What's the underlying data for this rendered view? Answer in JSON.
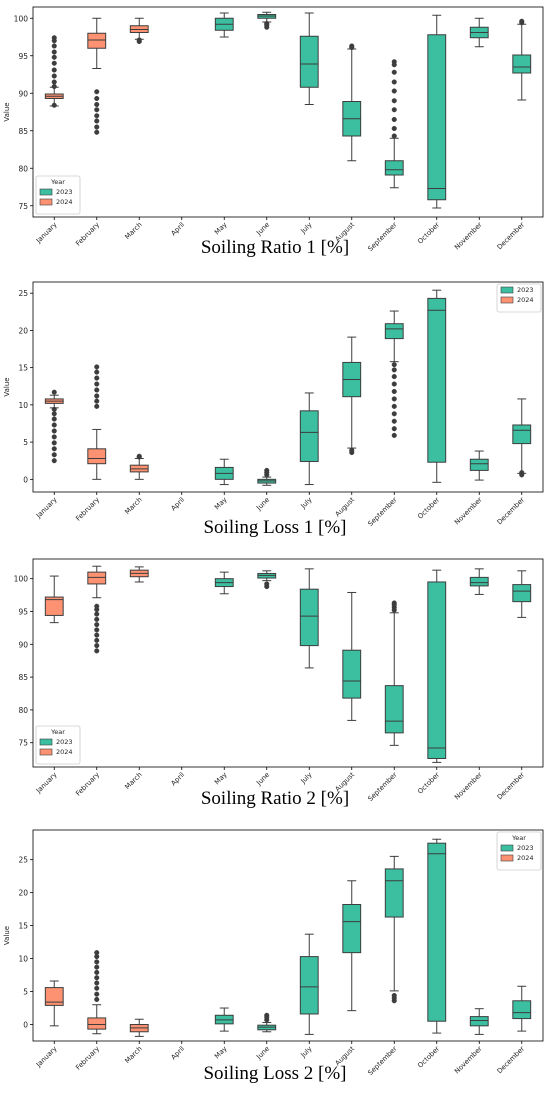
{
  "colors": {
    "y2023": "#3bbfa0",
    "y2024": "#fc9272",
    "stroke": "#3d3d3d",
    "axis": "#000000"
  },
  "legend_title": "Year",
  "chart_data": [
    {
      "type": "box",
      "title": "Soiling Ratio 1 [%]",
      "ylabel": "Value",
      "legend": {
        "title": "Year",
        "entries": [
          "2023",
          "2024"
        ],
        "placement": "bottom-left"
      },
      "categories": [
        "January",
        "February",
        "March",
        "April",
        "May",
        "June",
        "July",
        "August",
        "September",
        "October",
        "November",
        "December"
      ],
      "ylim": [
        73.5,
        101.5
      ],
      "yticks": [
        75,
        80,
        85,
        90,
        95,
        100
      ],
      "boxes": [
        {
          "cat": "January",
          "series": "2024",
          "min": 88.3,
          "q1": 89.3,
          "median": 89.6,
          "q3": 89.9,
          "max": 90.8,
          "outliers": [
            88.4,
            90.9,
            91.5,
            92.3,
            93.1,
            94.0,
            94.8,
            95.5,
            96.3,
            97.0,
            97.4
          ]
        },
        {
          "cat": "February",
          "series": "2024",
          "min": 93.3,
          "q1": 96.0,
          "median": 97.1,
          "q3": 98.0,
          "max": 100.0,
          "outliers": [
            84.8,
            85.5,
            86.3,
            87.0,
            87.8,
            88.5,
            89.3,
            90.2
          ]
        },
        {
          "cat": "March",
          "series": "2024",
          "min": 97.2,
          "q1": 98.1,
          "median": 98.5,
          "q3": 99.0,
          "max": 100.0,
          "outliers": [
            96.9,
            97.1
          ]
        },
        {
          "cat": "May",
          "series": "2023",
          "min": 97.5,
          "q1": 98.4,
          "median": 99.2,
          "q3": 100.0,
          "max": 100.7,
          "outliers": []
        },
        {
          "cat": "June",
          "series": "2023",
          "min": 99.5,
          "q1": 100.0,
          "median": 100.3,
          "q3": 100.5,
          "max": 100.8,
          "outliers": [
            98.8,
            99.1,
            99.3
          ]
        },
        {
          "cat": "July",
          "series": "2023",
          "min": 88.5,
          "q1": 90.8,
          "median": 93.9,
          "q3": 97.6,
          "max": 100.7,
          "outliers": []
        },
        {
          "cat": "August",
          "series": "2023",
          "min": 81.0,
          "q1": 84.3,
          "median": 86.6,
          "q3": 88.9,
          "max": 95.9,
          "outliers": [
            96.1,
            96.3
          ]
        },
        {
          "cat": "September",
          "series": "2023",
          "min": 77.4,
          "q1": 79.1,
          "median": 79.8,
          "q3": 81.0,
          "max": 84.0,
          "outliers": [
            84.3,
            85.3,
            86.5,
            87.8,
            89.0,
            90.3,
            91.5,
            92.8,
            93.8,
            94.2
          ]
        },
        {
          "cat": "October",
          "series": "2023",
          "min": 74.7,
          "q1": 75.8,
          "median": 77.3,
          "q3": 97.8,
          "max": 100.4,
          "outliers": []
        },
        {
          "cat": "November",
          "series": "2023",
          "min": 96.2,
          "q1": 97.4,
          "median": 98.1,
          "q3": 98.8,
          "max": 100.0,
          "outliers": []
        },
        {
          "cat": "December",
          "series": "2023",
          "min": 89.1,
          "q1": 92.7,
          "median": 93.5,
          "q3": 95.1,
          "max": 99.2,
          "outliers": [
            99.4,
            99.6
          ]
        }
      ]
    },
    {
      "type": "box",
      "title": "Soiling Loss 1 [%]",
      "ylabel": "Value",
      "legend": {
        "title": "",
        "entries": [
          "2023",
          "2024"
        ],
        "placement": "top-right"
      },
      "categories": [
        "January",
        "February",
        "March",
        "April",
        "May",
        "June",
        "July",
        "August",
        "September",
        "October",
        "November",
        "December"
      ],
      "ylim": [
        -1.7,
        26.5
      ],
      "yticks": [
        0,
        5,
        10,
        15,
        20,
        25
      ],
      "boxes": [
        {
          "cat": "January",
          "series": "2024",
          "min": 9.6,
          "q1": 10.2,
          "median": 10.5,
          "q3": 10.8,
          "max": 11.3,
          "outliers": [
            2.5,
            3.3,
            4.1,
            4.9,
            5.7,
            6.5,
            7.3,
            8.1,
            8.8,
            9.4,
            11.7
          ]
        },
        {
          "cat": "February",
          "series": "2024",
          "min": 0.0,
          "q1": 2.1,
          "median": 2.8,
          "q3": 4.1,
          "max": 6.7,
          "outliers": [
            9.8,
            10.5,
            11.2,
            12.0,
            12.8,
            13.6,
            14.4,
            15.1
          ]
        },
        {
          "cat": "March",
          "series": "2024",
          "min": 0.0,
          "q1": 1.0,
          "median": 1.4,
          "q3": 1.9,
          "max": 2.8,
          "outliers": [
            3.0,
            3.1
          ]
        },
        {
          "cat": "May",
          "series": "2023",
          "min": -0.7,
          "q1": 0.0,
          "median": 0.8,
          "q3": 1.6,
          "max": 2.7,
          "outliers": []
        },
        {
          "cat": "June",
          "series": "2023",
          "min": -0.8,
          "q1": -0.5,
          "median": -0.2,
          "q3": 0.0,
          "max": 0.3,
          "outliers": [
            0.6,
            0.9,
            1.2
          ]
        },
        {
          "cat": "July",
          "series": "2023",
          "min": -0.7,
          "q1": 2.4,
          "median": 6.3,
          "q3": 9.2,
          "max": 11.6,
          "outliers": []
        },
        {
          "cat": "August",
          "series": "2023",
          "min": 4.2,
          "q1": 11.1,
          "median": 13.4,
          "q3": 15.7,
          "max": 19.1,
          "outliers": [
            3.6,
            3.9
          ]
        },
        {
          "cat": "September",
          "series": "2023",
          "min": 15.8,
          "q1": 18.9,
          "median": 20.2,
          "q3": 20.9,
          "max": 22.6,
          "outliers": [
            5.9,
            6.8,
            7.8,
            8.8,
            9.8,
            10.8,
            11.8,
            12.8,
            13.8,
            14.7,
            15.4
          ]
        },
        {
          "cat": "October",
          "series": "2023",
          "min": -0.4,
          "q1": 2.3,
          "median": 22.7,
          "q3": 24.3,
          "max": 25.4,
          "outliers": []
        },
        {
          "cat": "November",
          "series": "2023",
          "min": -0.1,
          "q1": 1.2,
          "median": 2.1,
          "q3": 2.7,
          "max": 3.8,
          "outliers": []
        },
        {
          "cat": "December",
          "series": "2023",
          "min": 0.8,
          "q1": 4.8,
          "median": 6.6,
          "q3": 7.3,
          "max": 10.8,
          "outliers": [
            0.6,
            0.9
          ]
        }
      ]
    },
    {
      "type": "box",
      "title": "Soiling Ratio 2 [%]",
      "ylabel": "",
      "legend": {
        "title": "Year",
        "entries": [
          "2023",
          "2024"
        ],
        "placement": "bottom-left"
      },
      "categories": [
        "January",
        "February",
        "March",
        "April",
        "May",
        "June",
        "July",
        "August",
        "September",
        "October",
        "November",
        "December"
      ],
      "ylim": [
        71.3,
        103.0
      ],
      "yticks": [
        75,
        80,
        85,
        90,
        95,
        100
      ],
      "boxes": [
        {
          "cat": "January",
          "series": "2024",
          "min": 93.3,
          "q1": 94.4,
          "median": 96.8,
          "q3": 97.2,
          "max": 100.4,
          "outliers": []
        },
        {
          "cat": "February",
          "series": "2024",
          "min": 97.1,
          "q1": 99.2,
          "median": 100.2,
          "q3": 101.0,
          "max": 101.9,
          "outliers": [
            89.0,
            89.8,
            90.6,
            91.4,
            92.2,
            93.0,
            93.8,
            94.6,
            95.3,
            95.8
          ]
        },
        {
          "cat": "March",
          "series": "2024",
          "min": 99.5,
          "q1": 100.3,
          "median": 100.8,
          "q3": 101.3,
          "max": 101.8,
          "outliers": []
        },
        {
          "cat": "May",
          "series": "2023",
          "min": 97.7,
          "q1": 98.8,
          "median": 99.4,
          "q3": 100.0,
          "max": 101.0,
          "outliers": []
        },
        {
          "cat": "June",
          "series": "2023",
          "min": 99.7,
          "q1": 100.1,
          "median": 100.5,
          "q3": 100.8,
          "max": 101.2,
          "outliers": [
            98.8,
            99.2
          ]
        },
        {
          "cat": "July",
          "series": "2023",
          "min": 86.4,
          "q1": 89.8,
          "median": 94.3,
          "q3": 98.4,
          "max": 101.5,
          "outliers": []
        },
        {
          "cat": "August",
          "series": "2023",
          "min": 78.4,
          "q1": 81.8,
          "median": 84.4,
          "q3": 89.1,
          "max": 97.9,
          "outliers": []
        },
        {
          "cat": "September",
          "series": "2023",
          "min": 74.6,
          "q1": 76.5,
          "median": 78.3,
          "q3": 83.7,
          "max": 94.8,
          "outliers": [
            95.2,
            95.6,
            96.0,
            96.3
          ]
        },
        {
          "cat": "October",
          "series": "2023",
          "min": 72.0,
          "q1": 72.6,
          "median": 74.2,
          "q3": 99.5,
          "max": 101.3,
          "outliers": []
        },
        {
          "cat": "November",
          "series": "2023",
          "min": 97.6,
          "q1": 98.9,
          "median": 99.4,
          "q3": 100.2,
          "max": 101.5,
          "outliers": []
        },
        {
          "cat": "December",
          "series": "2023",
          "min": 94.1,
          "q1": 96.5,
          "median": 98.1,
          "q3": 99.1,
          "max": 101.2,
          "outliers": []
        }
      ]
    },
    {
      "type": "box",
      "title": "Soiling Loss 2 [%]",
      "ylabel": "Value",
      "legend": {
        "title": "Year",
        "entries": [
          "2023",
          "2024"
        ],
        "placement": "top-right"
      },
      "categories": [
        "January",
        "February",
        "March",
        "April",
        "May",
        "June",
        "July",
        "August",
        "September",
        "October",
        "November",
        "December"
      ],
      "ylim": [
        -2.5,
        29.5
      ],
      "yticks": [
        0,
        5,
        10,
        15,
        20,
        25
      ],
      "boxes": [
        {
          "cat": "January",
          "series": "2024",
          "min": -0.2,
          "q1": 2.9,
          "median": 3.4,
          "q3": 5.6,
          "max": 6.6,
          "outliers": []
        },
        {
          "cat": "February",
          "series": "2024",
          "min": -1.4,
          "q1": -0.7,
          "median": 0.0,
          "q3": 1.0,
          "max": 3.0,
          "outliers": [
            3.8,
            4.6,
            5.5,
            6.3,
            7.1,
            7.9,
            8.7,
            9.5,
            10.3,
            10.9
          ]
        },
        {
          "cat": "March",
          "series": "2024",
          "min": -1.8,
          "q1": -1.1,
          "median": -0.5,
          "q3": 0.0,
          "max": 0.8,
          "outliers": []
        },
        {
          "cat": "May",
          "series": "2023",
          "min": -1.0,
          "q1": 0.1,
          "median": 0.7,
          "q3": 1.4,
          "max": 2.5,
          "outliers": []
        },
        {
          "cat": "June",
          "series": "2023",
          "min": -1.1,
          "q1": -0.8,
          "median": -0.4,
          "q3": -0.1,
          "max": 0.3,
          "outliers": [
            0.7,
            1.1,
            1.4
          ]
        },
        {
          "cat": "July",
          "series": "2023",
          "min": -1.5,
          "q1": 1.6,
          "median": 5.7,
          "q3": 10.3,
          "max": 13.7,
          "outliers": []
        },
        {
          "cat": "August",
          "series": "2023",
          "min": 2.1,
          "q1": 10.9,
          "median": 15.6,
          "q3": 18.2,
          "max": 21.8,
          "outliers": []
        },
        {
          "cat": "September",
          "series": "2023",
          "min": 5.1,
          "q1": 16.3,
          "median": 21.8,
          "q3": 23.6,
          "max": 25.5,
          "outliers": [
            3.6,
            4.0,
            4.4
          ]
        },
        {
          "cat": "October",
          "series": "2023",
          "min": -1.3,
          "q1": 0.5,
          "median": 25.9,
          "q3": 27.5,
          "max": 28.1,
          "outliers": []
        },
        {
          "cat": "November",
          "series": "2023",
          "min": -1.5,
          "q1": -0.2,
          "median": 0.6,
          "q3": 1.2,
          "max": 2.4,
          "outliers": []
        },
        {
          "cat": "December",
          "series": "2023",
          "min": -1.0,
          "q1": 0.9,
          "median": 1.8,
          "q3": 3.6,
          "max": 5.8,
          "outliers": []
        }
      ]
    }
  ]
}
